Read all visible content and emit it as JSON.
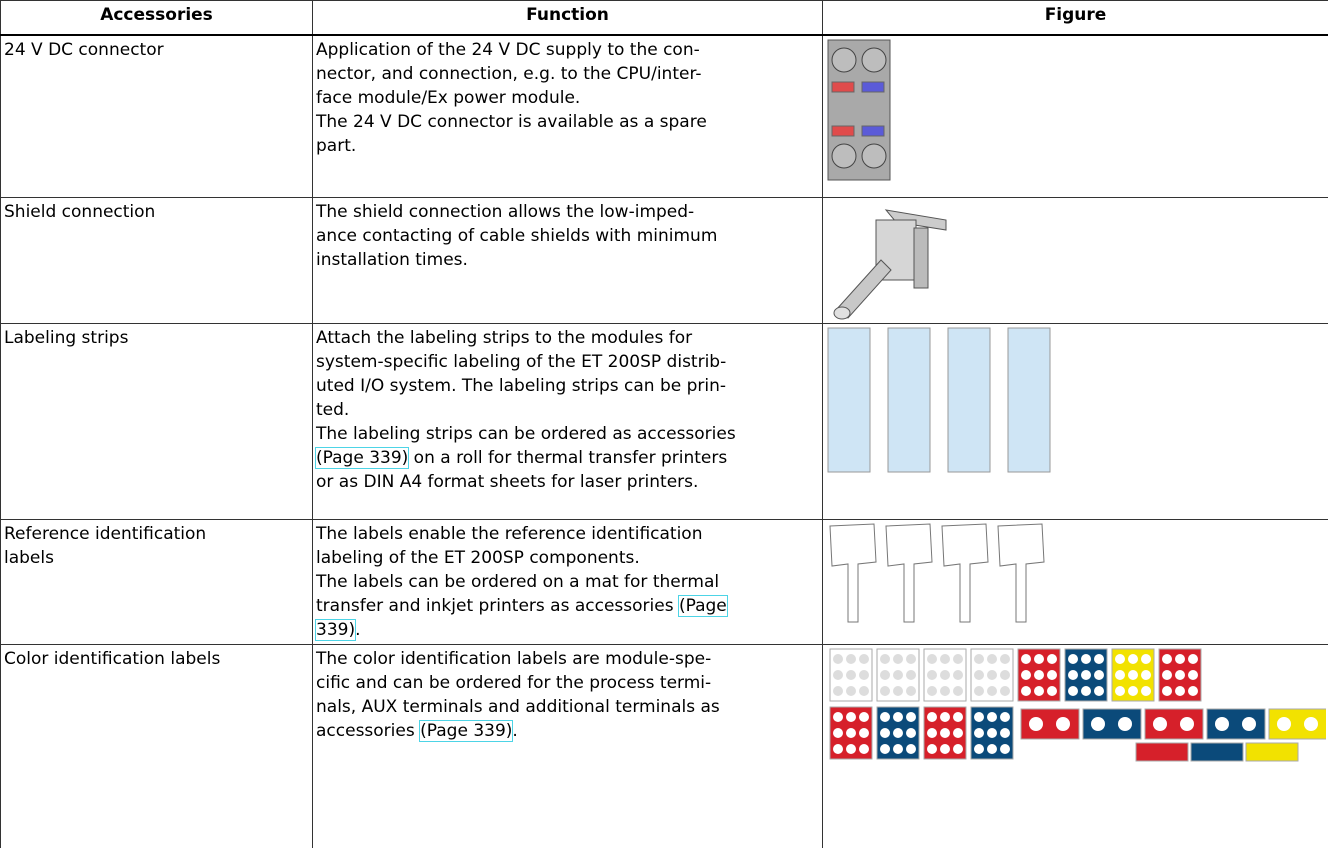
{
  "table": {
    "headers": [
      "Accessories",
      "Function",
      "Figure"
    ],
    "rows": [
      {
        "accessory": [
          "24 V DC connector"
        ],
        "function": [
          "Application of the 24 V DC supply to the con-",
          "nector, and connection, e.g. to the CPU/inter-",
          "face module/Ex power module.",
          "The 24 V DC connector is available as a spare",
          "part."
        ]
      },
      {
        "accessory": [
          "Shield connection"
        ],
        "function": [
          "The shield connection allows the low-imped-",
          "ance contacting of cable shields with minimum",
          "installation times."
        ]
      },
      {
        "accessory": [
          "Labeling strips"
        ],
        "function": [
          "Attach the labeling strips to the modules for",
          "system-specific labeling of the ET 200SP distrib-",
          "uted I/O system. The labeling strips can be prin-",
          "ted.",
          "The labeling strips can be ordered as accessories",
          [
            {
              "link": "(Page 339)"
            },
            " on a roll for thermal transfer printers"
          ],
          "or as DIN A4 format sheets for laser printers."
        ]
      },
      {
        "accessory": [
          "Reference identification",
          "labels"
        ],
        "function": [
          "The labels enable the reference identification",
          "labeling of the ET 200SP components.",
          "The labels can be ordered on a mat for thermal",
          [
            "transfer and inkjet printers as accessories ",
            {
              "link": "(Page"
            }
          ],
          [
            {
              "link": "339)"
            },
            "."
          ]
        ]
      },
      {
        "accessory": [
          "Color identification labels"
        ],
        "function": [
          "The color identification labels are module-spe-",
          "cific and can be ordered for the process termi-",
          "nals, AUX terminals and additional terminals as",
          [
            "accessories ",
            {
              "link": "(Page 339)"
            },
            "."
          ]
        ]
      }
    ]
  }
}
